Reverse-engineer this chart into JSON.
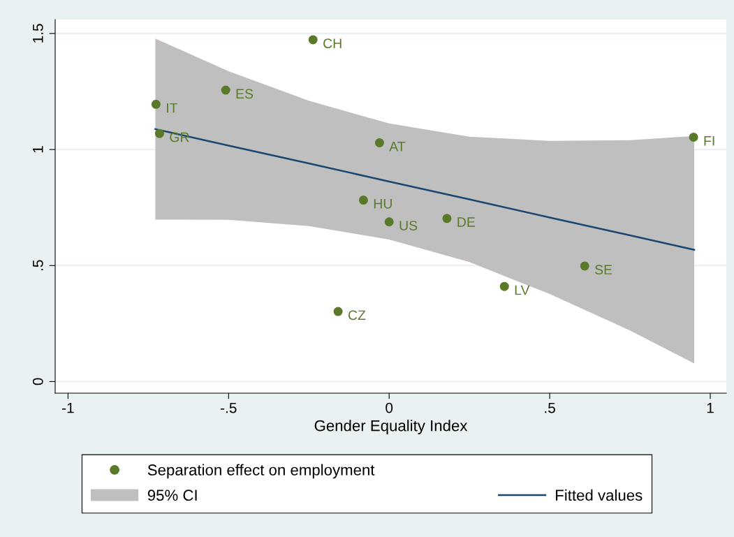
{
  "chart_data": {
    "type": "scatter",
    "xlabel": "Gender Equality Index",
    "xlim": [
      -1.04,
      1.05
    ],
    "ylim": [
      -0.05,
      1.56
    ],
    "xticks": [
      {
        "value": -1,
        "label": "-1"
      },
      {
        "value": -0.5,
        "label": "-.5"
      },
      0,
      {
        "value": 0.5,
        "label": ".5"
      },
      1
    ],
    "yticks": [
      0,
      {
        "value": 0.5,
        "label": ".5"
      },
      1,
      1.5
    ],
    "grid": "y",
    "legend": "bottom",
    "series": [
      {
        "marker": "circle",
        "name": "Separation effect on employment",
        "color": "#5a7a2a",
        "x": [
          -0.237,
          -0.509,
          -0.726,
          -0.715,
          -0.03,
          0.948,
          -0.08,
          0.0,
          0.18,
          0.609,
          0.359,
          -0.159
        ],
        "values": [
          1.473,
          1.256,
          1.195,
          1.069,
          1.029,
          1.053,
          0.782,
          0.688,
          0.703,
          0.498,
          0.41,
          0.302
        ]
      },
      {
        "type": "line",
        "name": "Fitted values",
        "color": "#1a476f",
        "x": [
          -0.728,
          -0.5,
          -0.25,
          0,
          0.25,
          0.5,
          0.75,
          0.95
        ],
        "values": [
          1.088,
          1.017,
          0.94,
          0.862,
          0.785,
          0.707,
          0.63,
          0.568
        ],
        "lower": [
          0.698,
          0.697,
          0.67,
          0.612,
          0.515,
          0.377,
          0.22,
          0.078
        ],
        "upper": [
          1.478,
          1.337,
          1.21,
          1.112,
          1.055,
          1.037,
          1.04,
          1.058
        ]
      }
    ],
    "annotations": [
      "95% CI",
      {
        "text": "CH",
        "x": -0.237,
        "y": 1.473
      },
      {
        "text": "ES",
        "x": -0.509,
        "y": 1.256
      },
      {
        "text": "IT",
        "x": -0.726,
        "y": 1.195
      },
      {
        "text": "GR",
        "x": -0.715,
        "y": 1.069
      },
      {
        "text": "AT",
        "x": -0.03,
        "y": 1.029
      },
      {
        "text": "FI",
        "x": 0.948,
        "y": 1.053
      },
      {
        "text": "HU",
        "x": -0.08,
        "y": 0.782
      },
      {
        "text": "US",
        "x": 0.0,
        "y": 0.688
      },
      {
        "text": "DE",
        "x": 0.18,
        "y": 0.703
      },
      {
        "text": "SE",
        "x": 0.609,
        "y": 0.498
      },
      {
        "text": "LV",
        "x": 0.359,
        "y": 0.41
      },
      {
        "text": "CZ",
        "x": -0.159,
        "y": 0.302
      }
    ]
  }
}
